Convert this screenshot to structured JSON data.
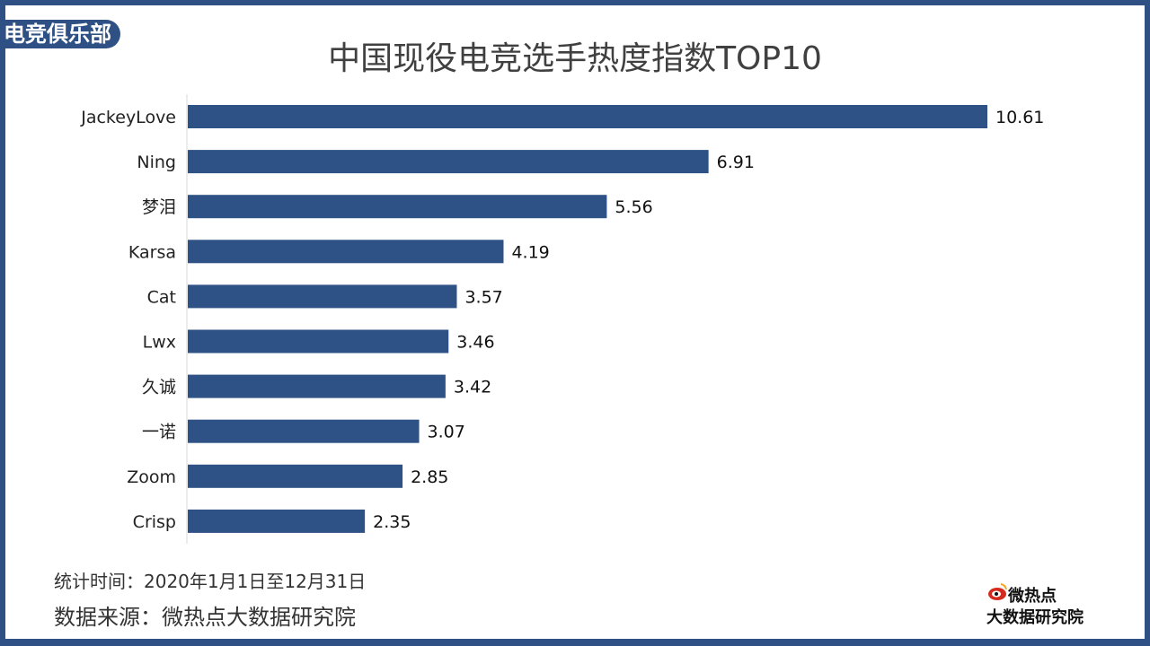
{
  "badge": "电竞俱乐部",
  "meta": {
    "time": "统计时间：2020年1月1日至12月31日",
    "source": "数据来源：微热点大数据研究院"
  },
  "logo": {
    "line1": "微热点",
    "line2": "大数据研究院",
    "icon": "weibo-eye-icon"
  },
  "colors": {
    "bar": "#2e5285",
    "frame": "#2f5085"
  },
  "chart_data": {
    "type": "bar",
    "orientation": "horizontal",
    "title": "中国现役电竞选手热度指数TOP10",
    "categories": [
      "JackeyLove",
      "Ning",
      "梦泪",
      "Karsa",
      "Cat",
      "Lwx",
      "久诚",
      "一诺",
      "Zoom",
      "Crisp"
    ],
    "values": [
      10.61,
      6.91,
      5.56,
      4.19,
      3.57,
      3.46,
      3.42,
      3.07,
      2.85,
      2.35
    ],
    "xlim": [
      0,
      10.61
    ],
    "grid": false,
    "data_labels": true
  }
}
